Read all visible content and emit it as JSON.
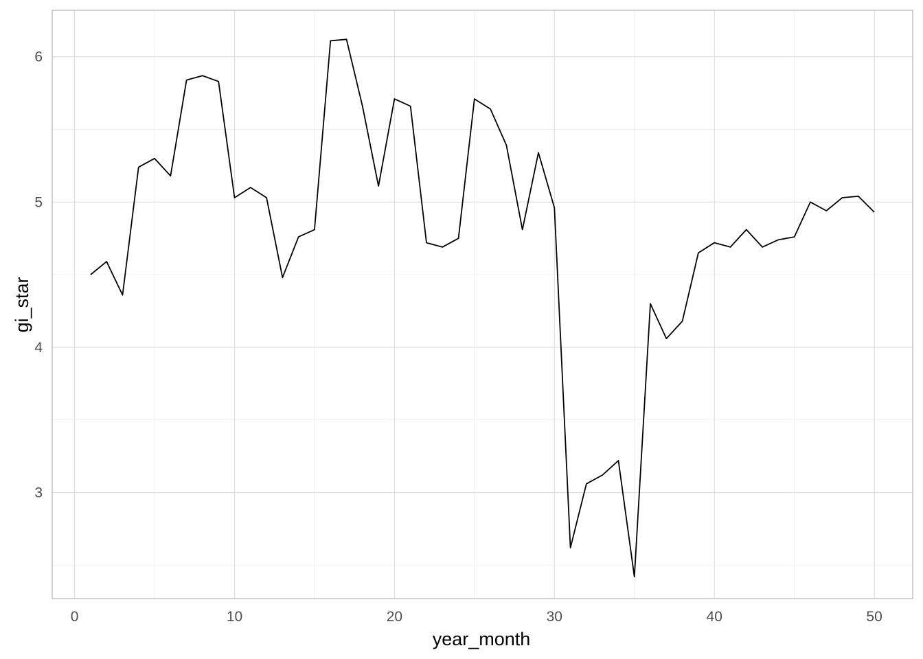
{
  "chart_data": {
    "type": "line",
    "xlabel": "year_month",
    "ylabel": "gi_star",
    "xlim": [
      -1.4,
      52.4
    ],
    "ylim": [
      2.27,
      6.32
    ],
    "x_ticks": [
      0,
      10,
      20,
      30,
      40,
      50
    ],
    "x_tick_labels": [
      "0",
      "10",
      "20",
      "30",
      "40",
      "50"
    ],
    "y_ticks": [
      3,
      4,
      5,
      6
    ],
    "y_tick_labels": [
      "3",
      "4",
      "5",
      "6"
    ],
    "grid": true,
    "legend": "none",
    "line_color": "#000000",
    "x": [
      1,
      2,
      3,
      4,
      5,
      6,
      7,
      8,
      9,
      10,
      11,
      12,
      13,
      14,
      15,
      16,
      17,
      18,
      19,
      20,
      21,
      22,
      23,
      24,
      25,
      26,
      27,
      28,
      29,
      30,
      31,
      32,
      33,
      34,
      35,
      36,
      37,
      38,
      39,
      40,
      41,
      42,
      43,
      44,
      45,
      46,
      47,
      48,
      49,
      50
    ],
    "y": [
      4.5,
      4.59,
      4.36,
      5.24,
      5.3,
      5.18,
      5.84,
      5.87,
      5.83,
      5.03,
      5.1,
      5.03,
      4.48,
      4.76,
      4.81,
      6.11,
      6.12,
      5.66,
      5.11,
      5.71,
      5.66,
      4.72,
      4.69,
      4.75,
      5.71,
      5.64,
      5.39,
      4.81,
      5.34,
      4.96,
      2.62,
      3.06,
      3.12,
      3.22,
      2.42,
      4.3,
      4.06,
      4.18,
      4.65,
      4.72,
      4.69,
      4.81,
      4.69,
      4.74,
      4.76,
      5.0,
      4.94,
      5.03,
      5.04,
      4.93
    ]
  }
}
